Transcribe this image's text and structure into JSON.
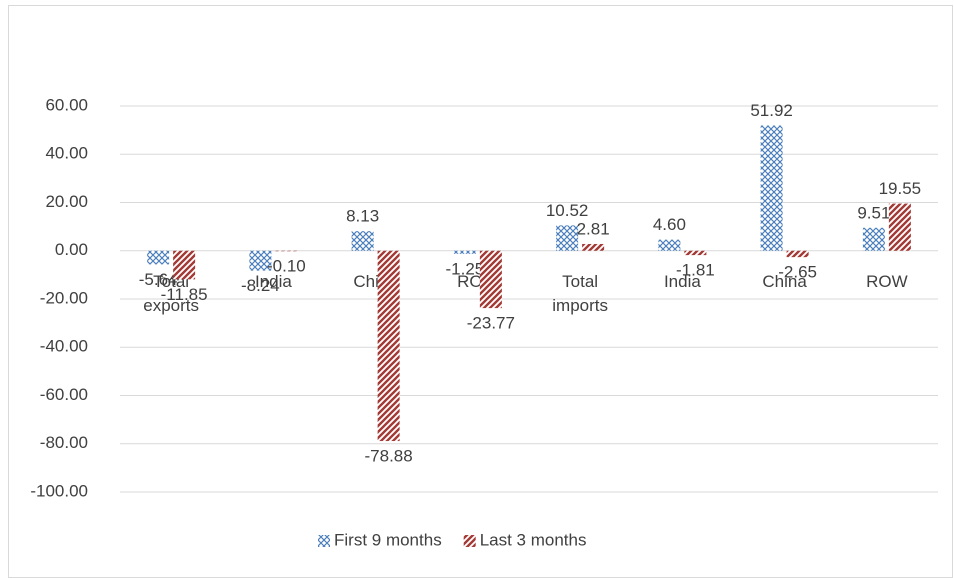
{
  "chart_data": {
    "type": "bar",
    "categories": [
      "Total exports",
      "India",
      "China",
      "ROW",
      "Total imports",
      "India",
      "China",
      "ROW"
    ],
    "series": [
      {
        "name": "First 9 months",
        "color": "#4a7ebb",
        "pattern": "dots",
        "values": [
          -5.64,
          -8.24,
          8.13,
          -1.25,
          10.52,
          4.6,
          51.92,
          9.51
        ],
        "value_labels": [
          "-5.64",
          "-8.24",
          "8.13",
          "-1.25",
          "10.52",
          "4.60",
          "51.92",
          "9.51"
        ]
      },
      {
        "name": "Last 3 months",
        "color": "#a33a36",
        "pattern": "stripes",
        "values": [
          -11.85,
          -0.1,
          -78.88,
          -23.77,
          2.81,
          -1.81,
          -2.65,
          19.55
        ],
        "value_labels": [
          "-11.85",
          "-0.10",
          "-78.88",
          "-23.77",
          "2.81",
          "-1.81",
          "-2.65",
          "19.55"
        ]
      }
    ],
    "ylim": [
      -100,
      60
    ],
    "yticks": [
      {
        "value": -100,
        "label": "-100.00"
      },
      {
        "value": -80,
        "label": "-80.00"
      },
      {
        "value": -60,
        "label": "-60.00"
      },
      {
        "value": -40,
        "label": "-40.00"
      },
      {
        "value": -20,
        "label": "-20.00"
      },
      {
        "value": 0,
        "label": "0.00"
      },
      {
        "value": 20,
        "label": "20.00"
      },
      {
        "value": 40,
        "label": "40.00"
      },
      {
        "value": 60,
        "label": "60.00"
      }
    ],
    "grid": true,
    "legend": "bottom"
  }
}
